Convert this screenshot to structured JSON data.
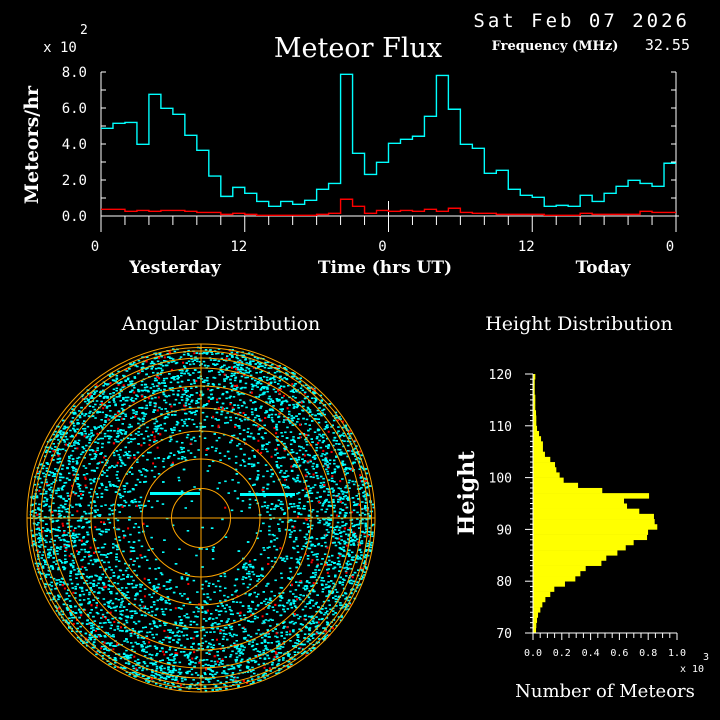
{
  "header": {
    "date": "Sat Feb 07 2026",
    "title": "Meteor Flux",
    "frequency_label": "Frequency (MHz)",
    "frequency_value": "32.55"
  },
  "colors": {
    "background": "#000000",
    "all_meteors": "#00ffff",
    "secondary": "#ff0000",
    "axes": "#ffffff",
    "grid_rings": "#ffa500",
    "height_bars": "#ffff00"
  },
  "chart_data": [
    {
      "type": "line",
      "step": true,
      "title": "Meteor Flux",
      "ylabel": "Meteors/hr",
      "yscale_label": "x 10",
      "yscale_exponent": "2",
      "xlabel": "Time (hrs UT)",
      "x_group_labels": [
        "Yesterday",
        "Today"
      ],
      "x_tick_labels": [
        "0",
        "12",
        "0",
        "12",
        "0"
      ],
      "y_tick_labels": [
        "0.0",
        "2.0",
        "4.0",
        "6.0",
        "8.0"
      ],
      "ylim": [
        0,
        8
      ],
      "xlim_hours": [
        0,
        48
      ],
      "series": [
        {
          "color": "#00ffff",
          "values": [
            4.87,
            5.15,
            5.2,
            3.98,
            6.76,
            5.98,
            5.65,
            4.48,
            3.65,
            2.22,
            1.09,
            1.59,
            1.26,
            0.81,
            0.54,
            0.81,
            0.65,
            0.87,
            1.48,
            1.81,
            7.87,
            3.48,
            2.31,
            2.98,
            4.04,
            4.26,
            4.43,
            5.54,
            7.81,
            5.93,
            3.98,
            3.76,
            2.37,
            2.54,
            1.48,
            1.15,
            1.04,
            0.54,
            0.59,
            0.54,
            1.15,
            0.81,
            1.26,
            1.65,
            1.98,
            1.81,
            1.65,
            2.93
          ]
        },
        {
          "color": "#ff0000",
          "values": [
            0.37,
            0.37,
            0.26,
            0.31,
            0.26,
            0.31,
            0.31,
            0.26,
            0.2,
            0.2,
            0.09,
            0.15,
            0.09,
            0.04,
            0.04,
            0.04,
            0.04,
            0.04,
            0.09,
            0.15,
            0.93,
            0.54,
            0.15,
            0.31,
            0.26,
            0.31,
            0.26,
            0.37,
            0.26,
            0.43,
            0.2,
            0.15,
            0.15,
            0.09,
            0.09,
            0.09,
            0.09,
            0.04,
            0.04,
            0.04,
            0.15,
            0.09,
            0.09,
            0.09,
            0.09,
            0.26,
            0.2,
            0.2
          ]
        }
      ]
    },
    {
      "type": "scatter",
      "title": "Angular Distribution",
      "polar": true
    },
    {
      "type": "bar",
      "orientation": "horizontal",
      "title": "Height Distribution",
      "ylabel": "Height",
      "xlabel": "Number of Meteors",
      "xscale_label": "x 10",
      "xscale_exponent": "3",
      "ylim": [
        70,
        120
      ],
      "xlim": [
        0,
        1.0
      ],
      "y_tick_labels": [
        "70",
        "80",
        "90",
        "100",
        "110",
        "120"
      ],
      "x_tick_labels": [
        "0.0",
        "0.2",
        "0.4",
        "0.6",
        "0.8",
        "1.0"
      ],
      "bin_start_heights": [
        70,
        71,
        72,
        73,
        74,
        75,
        76,
        77,
        78,
        79,
        80,
        81,
        82,
        83,
        84,
        85,
        86,
        87,
        88,
        89,
        90,
        91,
        92,
        93,
        94,
        95,
        96,
        97,
        98,
        99,
        100,
        101,
        102,
        103,
        104,
        105,
        106,
        107,
        108,
        109,
        110,
        111,
        112,
        113,
        114,
        115,
        116,
        117,
        118,
        119
      ],
      "values": [
        0.021,
        0.023,
        0.028,
        0.035,
        0.051,
        0.065,
        0.086,
        0.12,
        0.148,
        0.222,
        0.294,
        0.329,
        0.366,
        0.475,
        0.509,
        0.586,
        0.644,
        0.699,
        0.792,
        0.799,
        0.863,
        0.845,
        0.84,
        0.738,
        0.653,
        0.632,
        0.806,
        0.481,
        0.313,
        0.213,
        0.185,
        0.162,
        0.153,
        0.12,
        0.083,
        0.069,
        0.069,
        0.056,
        0.042,
        0.028,
        0.023,
        0.023,
        0.021,
        0.016,
        0.016,
        0.016,
        0.012,
        0.012,
        0.012,
        0.016
      ]
    }
  ]
}
